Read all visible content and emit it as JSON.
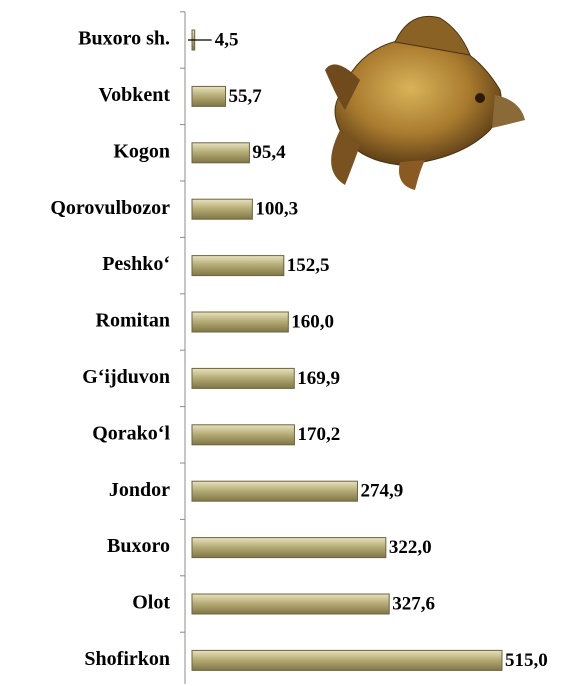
{
  "chart_data": {
    "type": "bar",
    "orientation": "horizontal",
    "categories": [
      "Buxoro sh.",
      "Vobkent",
      "Kogon",
      "Qorovulbozor",
      "Peshko‘",
      "Romitan",
      "G‘ijduvon",
      "Qorako‘l",
      "Jondor",
      "Buxoro",
      "Olot",
      "Shofirkon"
    ],
    "values": [
      4.5,
      55.7,
      95.4,
      100.3,
      152.5,
      160.0,
      169.9,
      170.2,
      274.9,
      322.0,
      327.6,
      515.0
    ],
    "value_labels": [
      "4,5",
      "55,7",
      "95,4",
      "100,3",
      "152,5",
      "160,0",
      "169,9",
      "170,2",
      "274,9",
      "322,0",
      "327,6",
      "515,0"
    ],
    "color": "#b3a973"
  }
}
